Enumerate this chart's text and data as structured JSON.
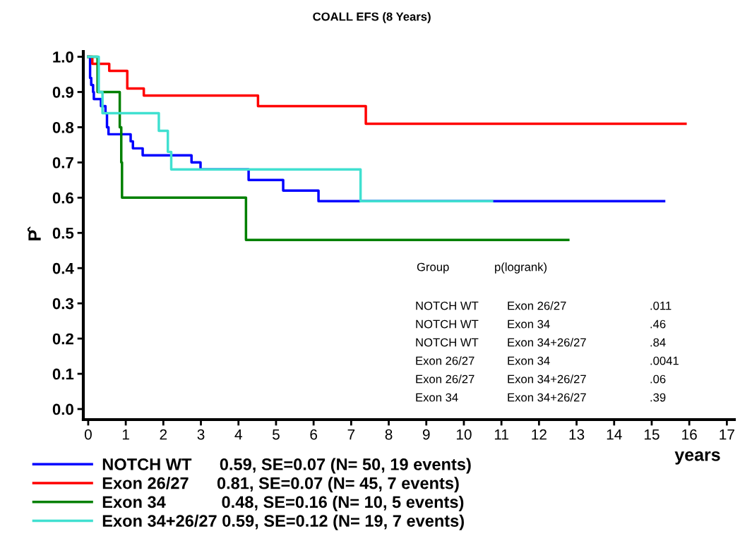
{
  "chart_data": {
    "type": "step",
    "title": "COALL EFS (8 Years)",
    "xlabel": "years",
    "ylabel": "P̂",
    "xlim": [
      -0.13,
      17.2
    ],
    "ylim": [
      -0.03,
      1.015
    ],
    "xticks": [
      0,
      1,
      2,
      3,
      4,
      5,
      6,
      7,
      8,
      9,
      10,
      11,
      12,
      13,
      14,
      15,
      16,
      17
    ],
    "yticks": [
      {
        "value": 0,
        "label": "0.0"
      },
      {
        "value": 0.1,
        "label": "0.1"
      },
      {
        "value": 0.2,
        "label": "0.2"
      },
      {
        "value": 0.3,
        "label": "0.3"
      },
      {
        "value": 0.4,
        "label": "0.4"
      },
      {
        "value": 0.5,
        "label": "0.5"
      },
      {
        "value": 0.6,
        "label": "0.6"
      },
      {
        "value": 0.7,
        "label": "0.7"
      },
      {
        "value": 0.8,
        "label": "0.8"
      },
      {
        "value": 0.9,
        "label": "0.9"
      },
      {
        "value": 1,
        "label": "1.0"
      }
    ],
    "grid": false,
    "legend": "bottom",
    "marker": "none",
    "line_style": "solid",
    "series": [
      {
        "name": "NOTCH WT      0.59, SE=0.07 (N= 50, 19 events)",
        "color": "#0000ff",
        "x": [
          0,
          0.05,
          0.08,
          0.13,
          0.15,
          0.34,
          0.46,
          0.5,
          0.54,
          1.13,
          1.19,
          1.45,
          2.75,
          2.99,
          4.27,
          5.19,
          6.13,
          15.33
        ],
        "values": [
          1.0,
          0.94,
          0.92,
          0.9,
          0.88,
          0.86,
          0.84,
          0.8,
          0.78,
          0.76,
          0.74,
          0.72,
          0.7,
          0.68,
          0.65,
          0.62,
          0.59,
          0.59
        ]
      },
      {
        "name": "Exon 26/27      0.81, SE=0.07 (N= 45, 7 events)",
        "color": "#ff0000",
        "x": [
          0,
          0.11,
          0.56,
          1.04,
          1.48,
          4.52,
          7.39,
          15.9
        ],
        "values": [
          1.0,
          0.98,
          0.96,
          0.91,
          0.89,
          0.86,
          0.81,
          0.81
        ]
      },
      {
        "name": "Exon 34            0.48, SE=0.16 (N= 10, 5 events)",
        "color": "#008000",
        "x": [
          0,
          0.25,
          0.84,
          0.88,
          0.9,
          4.2,
          12.78
        ],
        "values": [
          1.0,
          0.9,
          0.8,
          0.7,
          0.6,
          0.48,
          0.48
        ]
      },
      {
        "name": "Exon 34+26/27 0.59, SE=0.12 (N= 19, 7 events)",
        "color": "#40e0d0",
        "x": [
          0,
          0.28,
          0.38,
          1.88,
          2.12,
          2.21,
          7.25,
          10.75
        ],
        "values": [
          1.0,
          0.9,
          0.84,
          0.79,
          0.73,
          0.68,
          0.59,
          0.59
        ]
      }
    ],
    "annotations": [
      "Group",
      "p(logrank)",
      "NOTCH WT",
      "Exon 26/27",
      ".011",
      "NOTCH WT",
      "Exon 34",
      ".46",
      "NOTCH WT",
      "Exon 34+26/27",
      ".84",
      "Exon 26/27",
      "Exon 34",
      ".0041",
      "Exon 26/27",
      "Exon 34+26/27",
      ".06",
      "Exon 34",
      "Exon 34+26/27",
      ".39"
    ]
  }
}
